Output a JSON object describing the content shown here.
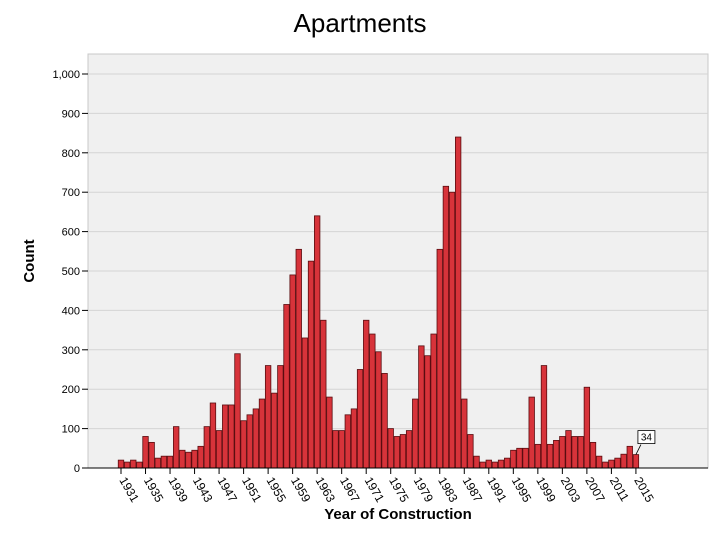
{
  "chart_data": {
    "type": "bar",
    "title": "Apartments",
    "xlabel": "Year of Construction",
    "ylabel": "Count",
    "ylim": [
      0,
      1000
    ],
    "yticks": [
      0,
      100,
      200,
      300,
      400,
      500,
      600,
      700,
      800,
      900,
      1000
    ],
    "ytick_labels": [
      "0",
      "100",
      "200",
      "300",
      "400",
      "500",
      "600",
      "700",
      "800",
      "900",
      "1,000"
    ],
    "xtick_labels": [
      "1931",
      "1935",
      "1939",
      "1943",
      "1947",
      "1951",
      "1955",
      "1959",
      "1963",
      "1967",
      "1971",
      "1975",
      "1979",
      "1983",
      "1987",
      "1991",
      "1995",
      "1999",
      "2003",
      "2007",
      "2011",
      "2015"
    ],
    "grid": true,
    "categories": [
      1931,
      1932,
      1933,
      1934,
      1935,
      1936,
      1937,
      1938,
      1939,
      1940,
      1941,
      1942,
      1943,
      1944,
      1945,
      1946,
      1947,
      1948,
      1949,
      1950,
      1951,
      1952,
      1953,
      1954,
      1955,
      1956,
      1957,
      1958,
      1959,
      1960,
      1961,
      1962,
      1963,
      1964,
      1965,
      1966,
      1967,
      1968,
      1969,
      1970,
      1971,
      1972,
      1973,
      1974,
      1975,
      1976,
      1977,
      1978,
      1979,
      1980,
      1981,
      1982,
      1983,
      1984,
      1985,
      1986,
      1987,
      1988,
      1989,
      1990,
      1991,
      1992,
      1993,
      1994,
      1995,
      1996,
      1997,
      1998,
      1999,
      2000,
      2001,
      2002,
      2003,
      2004,
      2005,
      2006,
      2007,
      2008,
      2009,
      2010,
      2011,
      2012,
      2013,
      2014,
      2015
    ],
    "values": [
      20,
      15,
      20,
      15,
      80,
      65,
      25,
      30,
      30,
      105,
      45,
      40,
      45,
      55,
      105,
      165,
      95,
      160,
      160,
      290,
      120,
      135,
      150,
      175,
      260,
      190,
      260,
      415,
      490,
      555,
      330,
      525,
      640,
      375,
      180,
      95,
      95,
      135,
      150,
      250,
      375,
      340,
      295,
      240,
      100,
      80,
      85,
      95,
      175,
      310,
      285,
      340,
      555,
      715,
      700,
      840,
      175,
      85,
      30,
      15,
      20,
      15,
      20,
      25,
      45,
      50,
      50,
      180,
      60,
      260,
      60,
      70,
      80,
      95,
      80,
      80,
      205,
      65,
      30,
      15,
      20,
      25,
      35,
      55,
      34
    ],
    "annotations": [
      {
        "year": 2015,
        "label": "34"
      }
    ]
  }
}
